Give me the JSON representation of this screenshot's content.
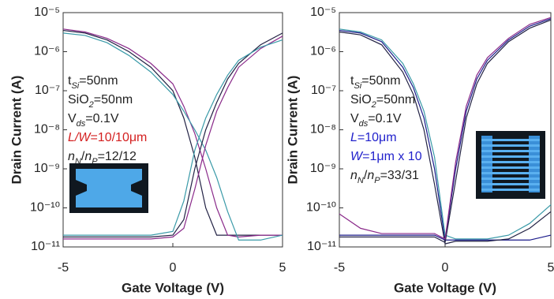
{
  "chart_data": [
    {
      "type": "line",
      "xlabel": "Gate Voltage (V)",
      "ylabel": "Drain Current (A)",
      "log_y": true,
      "xlim": [
        -5,
        5
      ],
      "ylim": [
        1e-11,
        1e-05
      ],
      "xticks": [
        -5,
        0,
        5
      ],
      "yticks": [
        {
          "value": 1e-11,
          "label": "10⁻¹¹"
        },
        {
          "value": 1e-10,
          "label": "10⁻¹⁰"
        },
        {
          "value": 1e-09,
          "label": "10⁻⁹"
        },
        {
          "value": 1e-08,
          "label": "10⁻⁸"
        },
        {
          "value": 1e-07,
          "label": "10⁻⁷"
        },
        {
          "value": 1e-06,
          "label": "10⁻⁶"
        },
        {
          "value": 1e-05,
          "label": "10⁻⁵"
        }
      ],
      "annotations": [
        [
          {
            "text": "t"
          },
          {
            "text": "Si",
            "sub": true
          },
          {
            "text": "=50nm"
          }
        ],
        [
          {
            "text": "SiO"
          },
          {
            "text": "2",
            "sub": true
          },
          {
            "text": "=50nm"
          }
        ],
        [
          {
            "text": "V"
          },
          {
            "text": "ds",
            "sub": true
          },
          {
            "text": "=0.1V"
          }
        ],
        [
          {
            "text": "L/W",
            "italic": true,
            "color": "#d42020"
          },
          {
            "text": "=10/10μm",
            "color": "#d42020"
          }
        ],
        [
          {
            "text": "n",
            "italic": true
          },
          {
            "text": "N",
            "sub": true
          },
          {
            "text": "/"
          },
          {
            "text": "n",
            "italic": true
          },
          {
            "text": "P",
            "sub": true
          },
          {
            "text": "=12/12"
          }
        ]
      ],
      "x": [
        -5,
        -4,
        -3,
        -2,
        -1,
        0,
        0.5,
        1,
        1.5,
        2,
        2.5,
        3,
        4,
        5
      ],
      "series": [
        {
          "color": "#222244",
          "values": [
            3.5e-06,
            3e-06,
            2e-06,
            1e-06,
            4e-07,
            1e-07,
            2e-08,
            2e-09,
            1e-10,
            2e-11,
            2e-11,
            2e-11,
            2e-11,
            2e-11
          ]
        },
        {
          "color": "#8a2a8a",
          "values": [
            3.8e-06,
            3.2e-06,
            2.2e-06,
            1.2e-06,
            5e-07,
            1.5e-07,
            4e-08,
            8e-09,
            1e-09,
            1e-10,
            2e-11,
            1.8e-11,
            2e-11,
            2e-11
          ]
        },
        {
          "color": "#3a9aa8",
          "values": [
            3e-06,
            2.6e-06,
            1.7e-06,
            8e-07,
            3e-07,
            8e-08,
            3e-08,
            1e-08,
            3e-09,
            6e-10,
            8e-11,
            1.5e-11,
            1.5e-11,
            2e-11
          ]
        },
        {
          "color": "#222244",
          "values": [
            1.8e-11,
            1.8e-11,
            1.8e-11,
            1.8e-11,
            1.8e-11,
            2e-11,
            5e-11,
            1e-09,
            1e-08,
            5e-08,
            2e-07,
            5e-07,
            1.5e-06,
            3e-06
          ]
        },
        {
          "color": "#8a2a8a",
          "values": [
            1.6e-11,
            1.6e-11,
            1.6e-11,
            1.6e-11,
            1.6e-11,
            1.8e-11,
            3e-11,
            3e-10,
            4e-09,
            3e-08,
            1.2e-07,
            4e-07,
            1.2e-06,
            2.5e-06
          ]
        },
        {
          "color": "#3a9aa8",
          "values": [
            2e-11,
            2e-11,
            2e-11,
            2e-11,
            2e-11,
            2.5e-11,
            1.5e-10,
            3e-09,
            2e-08,
            8e-08,
            2.5e-07,
            6e-07,
            1.3e-06,
            2e-06
          ]
        }
      ]
    },
    {
      "type": "line",
      "xlabel": "Gate Voltage (V)",
      "ylabel": "Drain Current (A)",
      "log_y": true,
      "xlim": [
        -5,
        5
      ],
      "ylim": [
        1e-11,
        1e-05
      ],
      "xticks": [
        -5,
        0,
        5
      ],
      "yticks": [
        {
          "value": 1e-11,
          "label": "10⁻¹¹"
        },
        {
          "value": 1e-10,
          "label": "10⁻¹⁰"
        },
        {
          "value": 1e-09,
          "label": "10⁻⁹"
        },
        {
          "value": 1e-08,
          "label": "10⁻⁸"
        },
        {
          "value": 1e-07,
          "label": "10⁻⁷"
        },
        {
          "value": 1e-06,
          "label": "10⁻⁶"
        },
        {
          "value": 1e-05,
          "label": "10⁻⁵"
        }
      ],
      "annotations": [
        [
          {
            "text": "t"
          },
          {
            "text": "Si",
            "sub": true
          },
          {
            "text": "=50nm"
          }
        ],
        [
          {
            "text": "SiO"
          },
          {
            "text": "2",
            "sub": true
          },
          {
            "text": "=50nm"
          }
        ],
        [
          {
            "text": "V"
          },
          {
            "text": "ds",
            "sub": true
          },
          {
            "text": "=0.1V"
          }
        ],
        [
          {
            "text": "L",
            "italic": true,
            "color": "#2222cc"
          },
          {
            "text": "=10μm",
            "color": "#2222cc"
          }
        ],
        [
          {
            "text": "W",
            "italic": true,
            "color": "#2222cc"
          },
          {
            "text": "=1μm x 10",
            "color": "#2222cc"
          }
        ],
        [
          {
            "text": "n",
            "italic": true
          },
          {
            "text": "N",
            "sub": true
          },
          {
            "text": "/"
          },
          {
            "text": "n",
            "italic": true
          },
          {
            "text": "P",
            "sub": true
          },
          {
            "text": "=33/31"
          }
        ]
      ],
      "x": [
        -5,
        -4,
        -3,
        -2,
        -1.5,
        -1,
        -0.5,
        0,
        0.5,
        1,
        1.5,
        2,
        3,
        4,
        5
      ],
      "series": [
        {
          "color": "#1a1a8a",
          "values": [
            3.5e-06,
            3e-06,
            1.8e-06,
            4e-07,
            1.2e-07,
            2e-08,
            1e-09,
            1.5e-11,
            1.5e-11,
            1.5e-11,
            1.5e-11,
            1.5e-11,
            1.5e-11,
            1.5e-11,
            2e-11
          ]
        },
        {
          "color": "#222244",
          "values": [
            3.2e-06,
            2.7e-06,
            1.5e-06,
            3e-07,
            8e-08,
            1e-08,
            4e-10,
            1.2e-11,
            1.4e-11,
            1.4e-11,
            1.4e-11,
            1.4e-11,
            1.6e-11,
            3e-11,
            8e-11
          ]
        },
        {
          "color": "#3a9aa8",
          "values": [
            3.8e-06,
            3.2e-06,
            2e-06,
            5e-07,
            1.5e-07,
            3e-08,
            2e-09,
            2e-11,
            1.6e-11,
            1.6e-11,
            1.6e-11,
            1.6e-11,
            2e-11,
            4e-11,
            1.2e-10
          ]
        },
        {
          "color": "#1a1a8a",
          "values": [
            2e-11,
            2e-11,
            2e-11,
            2e-11,
            2e-11,
            2e-11,
            2e-11,
            1.5e-11,
            1e-09,
            3e-08,
            2e-07,
            6e-07,
            2e-06,
            4.5e-06,
            7e-06
          ]
        },
        {
          "color": "#222244",
          "values": [
            1.8e-11,
            1.8e-11,
            1.8e-11,
            1.8e-11,
            1.8e-11,
            1.8e-11,
            1.8e-11,
            1.3e-11,
            5e-10,
            2e-08,
            1.5e-07,
            5e-07,
            1.8e-06,
            4e-06,
            6.5e-06
          ]
        },
        {
          "color": "#8a2a8a",
          "values": [
            7e-11,
            3e-11,
            2.2e-11,
            2.2e-11,
            2.2e-11,
            2.2e-11,
            2.2e-11,
            1.6e-11,
            1.5e-09,
            4e-08,
            2.5e-07,
            7e-07,
            2.2e-06,
            5e-06,
            7.5e-06
          ]
        }
      ]
    }
  ]
}
